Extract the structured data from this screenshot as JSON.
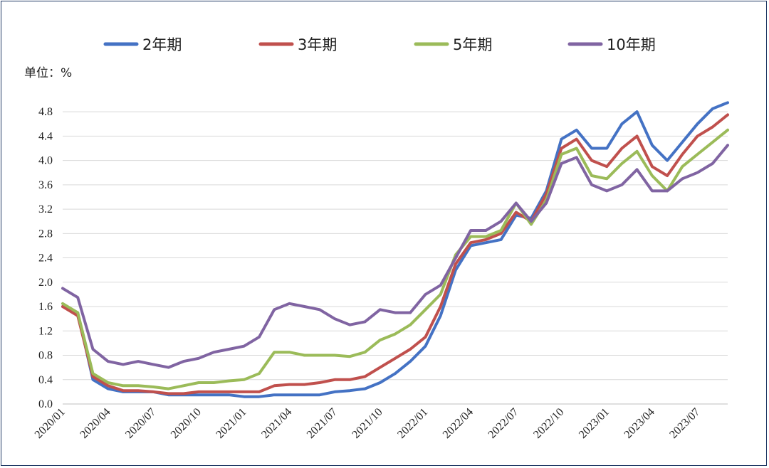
{
  "chart_data": {
    "type": "line",
    "title": "",
    "unit_label": "单位：%",
    "ylim": [
      0.0,
      5.0
    ],
    "yticks": [
      "0.0",
      "0.4",
      "0.8",
      "1.2",
      "1.6",
      "2.0",
      "2.4",
      "2.8",
      "3.2",
      "3.6",
      "4.0",
      "4.4",
      "4.8"
    ],
    "x": [
      "2020/01",
      "2020/02",
      "2020/03",
      "2020/04",
      "2020/05",
      "2020/06",
      "2020/07",
      "2020/08",
      "2020/09",
      "2020/10",
      "2020/11",
      "2020/12",
      "2021/01",
      "2021/02",
      "2021/03",
      "2021/04",
      "2021/05",
      "2021/06",
      "2021/07",
      "2021/08",
      "2021/09",
      "2021/10",
      "2021/11",
      "2021/12",
      "2022/01",
      "2022/02",
      "2022/03",
      "2022/04",
      "2022/05",
      "2022/06",
      "2022/07",
      "2022/08",
      "2022/09",
      "2022/10",
      "2022/11",
      "2022/12",
      "2023/01",
      "2023/02",
      "2023/03",
      "2023/04",
      "2023/05",
      "2023/06",
      "2023/07",
      "2023/08",
      "2023/09"
    ],
    "xtick_labels": [
      "2020/01",
      "2020/04",
      "2020/07",
      "2020/10",
      "2021/01",
      "2021/04",
      "2021/07",
      "2021/10",
      "2022/01",
      "2022/04",
      "2022/07",
      "2022/10",
      "2023/01",
      "2023/04",
      "2023/07"
    ],
    "series": [
      {
        "name": "2年期",
        "color": "#4472c4",
        "values": [
          1.6,
          1.5,
          0.4,
          0.25,
          0.2,
          0.2,
          0.2,
          0.15,
          0.15,
          0.15,
          0.15,
          0.15,
          0.12,
          0.12,
          0.15,
          0.15,
          0.15,
          0.15,
          0.2,
          0.22,
          0.25,
          0.35,
          0.5,
          0.7,
          0.95,
          1.45,
          2.2,
          2.6,
          2.65,
          2.7,
          3.1,
          3.05,
          3.5,
          4.35,
          4.5,
          4.2,
          4.2,
          4.6,
          4.8,
          4.25,
          4.0,
          4.3,
          4.6,
          4.85,
          4.95
        ]
      },
      {
        "name": "3年期",
        "color": "#c0504d",
        "values": [
          1.6,
          1.45,
          0.45,
          0.3,
          0.22,
          0.22,
          0.2,
          0.17,
          0.17,
          0.2,
          0.2,
          0.2,
          0.2,
          0.2,
          0.3,
          0.32,
          0.32,
          0.35,
          0.4,
          0.4,
          0.45,
          0.6,
          0.75,
          0.9,
          1.1,
          1.6,
          2.3,
          2.65,
          2.7,
          2.8,
          3.15,
          3.0,
          3.45,
          4.2,
          4.35,
          4.0,
          3.9,
          4.2,
          4.4,
          3.9,
          3.75,
          4.1,
          4.4,
          4.55,
          4.75
        ]
      },
      {
        "name": "5年期",
        "color": "#9bbb59",
        "values": [
          1.65,
          1.5,
          0.5,
          0.35,
          0.3,
          0.3,
          0.28,
          0.25,
          0.3,
          0.35,
          0.35,
          0.38,
          0.4,
          0.5,
          0.85,
          0.85,
          0.8,
          0.8,
          0.8,
          0.78,
          0.85,
          1.05,
          1.15,
          1.3,
          1.55,
          1.8,
          2.45,
          2.75,
          2.75,
          2.85,
          3.3,
          2.95,
          3.35,
          4.1,
          4.2,
          3.75,
          3.7,
          3.95,
          4.15,
          3.75,
          3.5,
          3.9,
          4.1,
          4.3,
          4.5
        ]
      },
      {
        "name": "10年期",
        "color": "#8064a2",
        "values": [
          1.9,
          1.75,
          0.9,
          0.7,
          0.65,
          0.7,
          0.65,
          0.6,
          0.7,
          0.75,
          0.85,
          0.9,
          0.95,
          1.1,
          1.55,
          1.65,
          1.6,
          1.55,
          1.4,
          1.3,
          1.35,
          1.55,
          1.5,
          1.5,
          1.8,
          1.95,
          2.4,
          2.85,
          2.85,
          3.0,
          3.3,
          3.0,
          3.3,
          3.95,
          4.05,
          3.6,
          3.5,
          3.6,
          3.85,
          3.5,
          3.5,
          3.7,
          3.8,
          3.95,
          4.25
        ]
      }
    ],
    "legend": "top",
    "grid": true
  }
}
